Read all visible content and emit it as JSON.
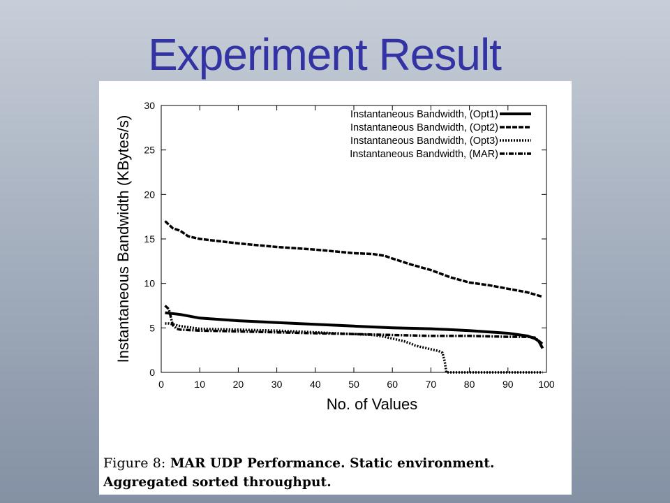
{
  "slide": {
    "title": "Experiment Result"
  },
  "caption": {
    "label": "Figure 8:",
    "line1": "MAR UDP Performance.  Static environment.",
    "line2": "Aggregated sorted throughput."
  },
  "chart_data": {
    "type": "line",
    "title": "",
    "xlabel": "No. of Values",
    "ylabel": "Instantaneous Bandwidth (KBytes/s)",
    "xlim": [
      0,
      100
    ],
    "ylim": [
      0,
      30
    ],
    "xticks": [
      0,
      10,
      20,
      30,
      40,
      50,
      60,
      70,
      80,
      90,
      100
    ],
    "yticks": [
      0,
      5,
      10,
      15,
      20,
      25,
      30
    ],
    "grid": false,
    "legend_position": "top-right",
    "series": [
      {
        "name": "Instantaneous Bandwidth, (Opt1)",
        "style": "solid",
        "x": [
          1,
          5,
          10,
          20,
          30,
          40,
          50,
          60,
          70,
          80,
          90,
          95,
          97,
          98,
          99
        ],
        "y": [
          6.7,
          6.5,
          6.1,
          5.8,
          5.6,
          5.4,
          5.2,
          5.0,
          4.9,
          4.7,
          4.4,
          4.1,
          3.8,
          3.5,
          2.7
        ]
      },
      {
        "name": "Instantaneous Bandwidth, (Opt2)",
        "style": "dashed",
        "x": [
          1,
          2,
          3,
          5,
          7,
          10,
          20,
          30,
          40,
          50,
          55,
          58,
          60,
          65,
          70,
          75,
          80,
          85,
          90,
          95,
          99
        ],
        "y": [
          17.0,
          16.6,
          16.2,
          15.9,
          15.3,
          15.0,
          14.5,
          14.1,
          13.8,
          13.4,
          13.3,
          13.1,
          12.8,
          12.1,
          11.5,
          10.7,
          10.1,
          9.8,
          9.4,
          9.0,
          8.5
        ]
      },
      {
        "name": "Instantaneous Bandwidth, (Opt3)",
        "style": "dotted",
        "x": [
          1,
          2,
          3,
          5,
          10,
          20,
          30,
          40,
          50,
          55,
          58,
          60,
          63,
          65,
          66,
          70,
          72,
          73,
          73.6,
          74,
          80,
          90,
          99
        ],
        "y": [
          5.5,
          5.5,
          5.4,
          5.2,
          4.9,
          4.8,
          4.7,
          4.5,
          4.3,
          4.2,
          4.0,
          3.8,
          3.5,
          3.2,
          3.0,
          2.6,
          2.4,
          2.2,
          1.2,
          0.0,
          0.0,
          0.0,
          0.0
        ]
      },
      {
        "name": "Instantaneous Bandwidth, (MAR)",
        "style": "dash-dot",
        "x": [
          1,
          2,
          2.5,
          3,
          4,
          5,
          10,
          20,
          30,
          40,
          50,
          60,
          70,
          80,
          90,
          95,
          97,
          99
        ],
        "y": [
          7.5,
          7.1,
          6.2,
          5.3,
          4.9,
          4.8,
          4.7,
          4.6,
          4.5,
          4.4,
          4.3,
          4.2,
          4.1,
          4.1,
          4.0,
          4.0,
          3.9,
          3.2
        ]
      }
    ]
  }
}
